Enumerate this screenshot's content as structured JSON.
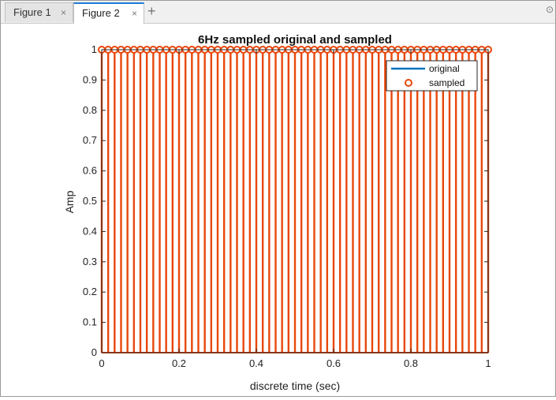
{
  "tabs": [
    {
      "label": "Figure 1",
      "close": "×"
    },
    {
      "label": "Figure 2",
      "close": "×"
    }
  ],
  "add_tab": "+",
  "corner_icon": "⊙",
  "chart_data": {
    "type": "stem",
    "title": "6Hz sampled original and sampled",
    "xlabel": "discrete time (sec)",
    "ylabel": "Amp",
    "xlim": [
      0,
      1
    ],
    "ylim": [
      0,
      1
    ],
    "xticks": [
      "0",
      "0.2",
      "0.4",
      "0.6",
      "0.8",
      "1"
    ],
    "yticks": [
      "0",
      "0.1",
      "0.2",
      "0.3",
      "0.4",
      "0.5",
      "0.6",
      "0.7",
      "0.8",
      "0.9",
      "1"
    ],
    "legend": {
      "placement": "top-right",
      "entries": [
        "original",
        "sampled"
      ]
    },
    "series": [
      {
        "name": "original",
        "color": "#0072bd",
        "style": "line",
        "x": [
          0,
          1
        ],
        "y": [
          1,
          1
        ]
      },
      {
        "name": "sampled",
        "color": "#e8470c",
        "style": "stem",
        "x_start": 0,
        "x_end": 1,
        "samples": 61,
        "y": 1
      }
    ]
  }
}
